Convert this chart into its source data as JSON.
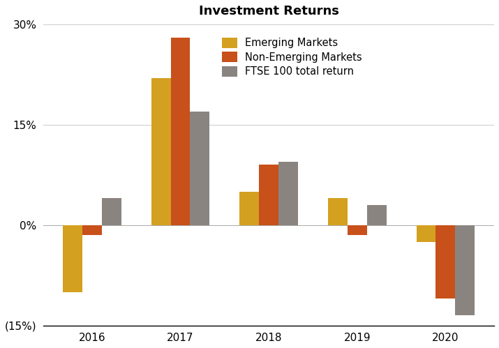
{
  "title": "Investment Returns",
  "years": [
    2016,
    2017,
    2018,
    2019,
    2020
  ],
  "emerging_markets": [
    -10.0,
    22.0,
    5.0,
    4.0,
    -2.5
  ],
  "non_emerging_markets": [
    -1.5,
    28.0,
    9.0,
    -1.5,
    -11.0
  ],
  "ftse_100": [
    4.0,
    17.0,
    9.5,
    3.0,
    -13.5
  ],
  "colors": {
    "emerging": "#D4A020",
    "non_emerging": "#C8501A",
    "ftse": "#8A8480"
  },
  "legend_labels": [
    "Emerging Markets",
    "Non-Emerging Markets",
    "FTSE 100 total return"
  ],
  "ylim": [
    -15,
    30
  ],
  "yticks": [
    -15,
    0,
    15,
    30
  ],
  "ytick_labels": [
    "(15%)",
    "0%",
    "15%",
    "30%"
  ],
  "bar_width": 0.22,
  "background_color": "#ffffff"
}
